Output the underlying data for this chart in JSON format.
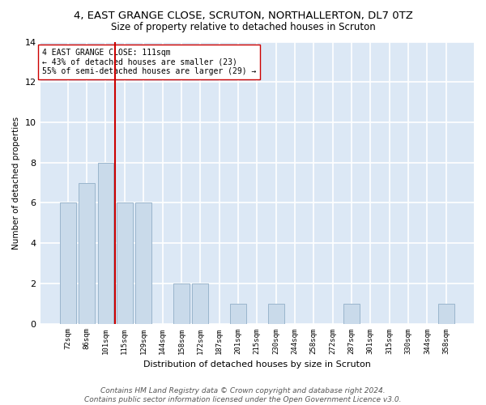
{
  "title": "4, EAST GRANGE CLOSE, SCRUTON, NORTHALLERTON, DL7 0TZ",
  "subtitle": "Size of property relative to detached houses in Scruton",
  "xlabel": "Distribution of detached houses by size in Scruton",
  "ylabel": "Number of detached properties",
  "categories": [
    "72sqm",
    "86sqm",
    "101sqm",
    "115sqm",
    "129sqm",
    "144sqm",
    "158sqm",
    "172sqm",
    "187sqm",
    "201sqm",
    "215sqm",
    "230sqm",
    "244sqm",
    "258sqm",
    "272sqm",
    "287sqm",
    "301sqm",
    "315sqm",
    "330sqm",
    "344sqm",
    "358sqm"
  ],
  "values": [
    6,
    7,
    8,
    6,
    6,
    0,
    2,
    2,
    0,
    1,
    0,
    1,
    0,
    0,
    0,
    1,
    0,
    0,
    0,
    0,
    1
  ],
  "bar_color": "#c9daea",
  "bar_edge_color": "#9ab5cc",
  "vline_color": "#cc0000",
  "vline_x_index": 2.5,
  "annotation_text": "4 EAST GRANGE CLOSE: 111sqm\n← 43% of detached houses are smaller (23)\n55% of semi-detached houses are larger (29) →",
  "annotation_box_color": "#ffffff",
  "annotation_box_edge": "#cc0000",
  "ylim": [
    0,
    14
  ],
  "yticks": [
    0,
    2,
    4,
    6,
    8,
    10,
    12,
    14
  ],
  "bg_color": "#dce8f5",
  "grid_color": "#ffffff",
  "fig_bg_color": "#ffffff",
  "footer": "Contains HM Land Registry data © Crown copyright and database right 2024.\nContains public sector information licensed under the Open Government Licence v3.0.",
  "title_fontsize": 9.5,
  "subtitle_fontsize": 8.5,
  "footer_fontsize": 6.5
}
